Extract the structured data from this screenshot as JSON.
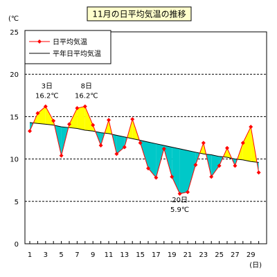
{
  "chart_data": {
    "type": "line",
    "title": "11月の日平均気温の推移",
    "y_unit": "(℃",
    "x_unit": "(日)",
    "ylim": [
      0,
      25
    ],
    "y_ticks": [
      0,
      5,
      10,
      15,
      20,
      25
    ],
    "x_ticks": [
      1,
      3,
      5,
      7,
      9,
      11,
      13,
      15,
      17,
      19,
      21,
      23,
      25,
      27,
      29
    ],
    "grid": "horizontal dashed",
    "legend_position": "top-left",
    "colors": {
      "daily": "#ff0000",
      "normal": "#000000",
      "above": "#ffff00",
      "below": "#00c8c8"
    },
    "series": [
      {
        "name": "日平均気温",
        "x": [
          1,
          2,
          3,
          4,
          5,
          6,
          7,
          8,
          9,
          10,
          11,
          12,
          13,
          14,
          15,
          16,
          17,
          18,
          19,
          20,
          21,
          22,
          23,
          24,
          25,
          26,
          27,
          28,
          29,
          30
        ],
        "values": [
          13.3,
          15.4,
          16.2,
          14.5,
          10.4,
          14.1,
          16.0,
          16.2,
          14.0,
          11.6,
          14.6,
          10.6,
          11.4,
          14.7,
          11.9,
          8.9,
          7.8,
          11.2,
          7.9,
          5.9,
          6.1,
          9.3,
          11.9,
          7.9,
          9.2,
          11.3,
          9.2,
          11.9,
          13.8,
          8.4
        ]
      },
      {
        "name": "平年日平均気温",
        "x": [
          1,
          2,
          3,
          4,
          5,
          6,
          7,
          8,
          9,
          10,
          11,
          12,
          13,
          14,
          15,
          16,
          17,
          18,
          19,
          20,
          21,
          22,
          23,
          24,
          25,
          26,
          27,
          28,
          29,
          30
        ],
        "values": [
          14.3,
          14.2,
          14.1,
          14.0,
          13.8,
          13.7,
          13.6,
          13.4,
          13.3,
          13.1,
          13.0,
          12.8,
          12.6,
          12.4,
          12.2,
          12.0,
          11.8,
          11.6,
          11.4,
          11.2,
          11.0,
          10.8,
          10.6,
          10.5,
          10.3,
          10.2,
          10.0,
          9.9,
          9.7,
          9.6
        ]
      }
    ],
    "annotations": [
      {
        "day": "3日",
        "temp": "16.2℃",
        "x": 3,
        "value": 16.2
      },
      {
        "day": "8日",
        "temp": "16.2℃",
        "x": 8,
        "value": 16.2
      },
      {
        "day": "20日",
        "temp": "5.9℃",
        "x": 20,
        "value": 5.9
      }
    ]
  }
}
